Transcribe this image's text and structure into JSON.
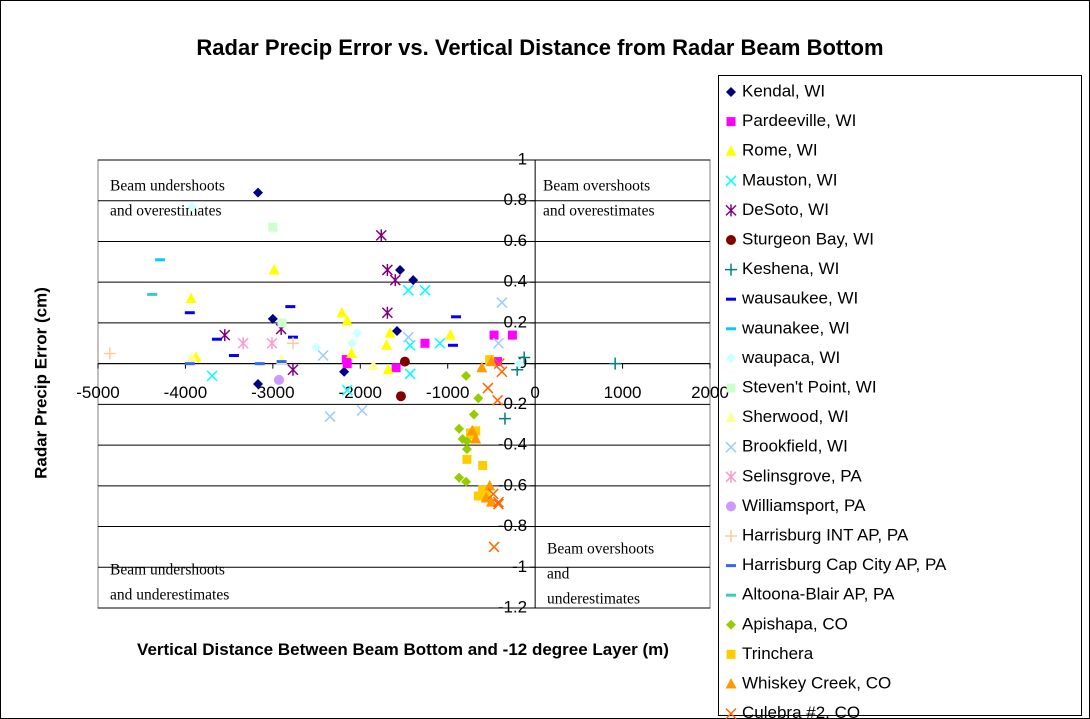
{
  "chart_data": {
    "type": "scatter",
    "title": "Radar Precip Error vs. Vertical Distance from Radar Beam Bottom",
    "x_label": "Vertical Distance Between Beam Bottom and -12 degree Layer (m)",
    "y_label": "Radar Precip Error (cm)",
    "xlim": [
      -5000,
      2000
    ],
    "xticks": [
      -5000,
      -4000,
      -3000,
      -2000,
      -1000,
      0,
      1000,
      2000
    ],
    "ylim": [
      -1.2,
      1
    ],
    "yticks": [
      1,
      0.8,
      0.6,
      0.4,
      0.2,
      0,
      -0.2,
      -0.4,
      -0.6,
      -0.8,
      -1,
      -1.2
    ],
    "grid": true,
    "legend": "right",
    "annotations": [
      {
        "lines": [
          "Beam undershoots",
          "and overestimates"
        ]
      },
      {
        "lines": [
          "Beam overshoots",
          "and overestimates"
        ]
      },
      {
        "lines": [
          "Beam undershoots",
          "and underestimates"
        ]
      },
      {
        "lines": [
          "Beam overshoots",
          "and",
          "underestimates"
        ]
      }
    ],
    "series": [
      {
        "name": "Kendal, WI",
        "color": "#000080",
        "marker": "diamond",
        "x": [
          -3170,
          -3000,
          -3170,
          -1545,
          -1395,
          -1580,
          -2185
        ],
        "values": [
          0.84,
          0.22,
          -0.1,
          0.46,
          0.41,
          0.16,
          -0.04
        ]
      },
      {
        "name": "Pardeeville, WI",
        "color": "#ff00ff",
        "marker": "square",
        "x": [
          -1260,
          -2160,
          -2150,
          -1590,
          -470,
          -260,
          -430
        ],
        "values": [
          0.1,
          0.02,
          0,
          -0.02,
          0.14,
          0.14,
          0.01
        ]
      },
      {
        "name": "Rome, WI",
        "color": "#ffff00",
        "marker": "triangle",
        "x": [
          -3935,
          -2985,
          -2210,
          -2150,
          -2100,
          -1660,
          -1700,
          -1680,
          -970,
          -3880
        ],
        "values": [
          0.32,
          0.46,
          0.25,
          0.21,
          0.05,
          0.15,
          0.09,
          -0.03,
          0.14,
          0.03
        ]
      },
      {
        "name": "Mauston, WI",
        "color": "#00ffff",
        "marker": "x",
        "x": [
          -3695,
          -2150,
          -1430,
          -1430,
          -1260,
          -1450,
          -1090
        ],
        "values": [
          -0.06,
          -0.13,
          0.09,
          -0.05,
          0.36,
          0.36,
          0.1
        ]
      },
      {
        "name": "DeSoto, WI",
        "color": "#800080",
        "marker": "star",
        "x": [
          -3550,
          -2905,
          -2770,
          -1760,
          -1690,
          -1600,
          -1690
        ],
        "values": [
          0.14,
          0.17,
          -0.03,
          0.63,
          0.46,
          0.41,
          0.25
        ]
      },
      {
        "name": "Sturgeon Bay, WI",
        "color": "#800000",
        "marker": "circle",
        "x": [
          -1490,
          -1535
        ],
        "values": [
          0.01,
          -0.16
        ]
      },
      {
        "name": "Keshena, WI",
        "color": "#008080",
        "marker": "plus",
        "x": [
          -125,
          -205,
          -345,
          915
        ],
        "values": [
          0.03,
          -0.03,
          -0.27,
          0
        ]
      },
      {
        "name": "wausaukee, WI",
        "color": "#0000ff",
        "marker": "dash",
        "x": [
          -3950,
          -3640,
          -3445,
          -2800,
          -2770,
          -905,
          -940
        ],
        "values": [
          0.25,
          0.12,
          0.04,
          0.28,
          0.13,
          0.23,
          0.09
        ]
      },
      {
        "name": "waunakee, WI",
        "color": "#00ccff",
        "marker": "dash",
        "x": [
          -4290
        ],
        "values": [
          0.51
        ]
      },
      {
        "name": "waupaca, WI",
        "color": "#ccffff",
        "marker": "diamond",
        "x": [
          -3925,
          -2035,
          -2095,
          -2505,
          -183
        ],
        "values": [
          0.77,
          0.15,
          0.1,
          0.08,
          0
        ]
      },
      {
        "name": "Steven't Point, WI",
        "color": "#ccffcc",
        "marker": "square",
        "x": [
          -3000,
          -2895
        ],
        "values": [
          0.67,
          0.2
        ]
      },
      {
        "name": "Sherwood, WI",
        "color": "#ffff99",
        "marker": "triangle",
        "x": [
          -3925,
          -2900,
          -1850
        ],
        "values": [
          0.03,
          0.02,
          -0.01
        ]
      },
      {
        "name": "Brookfield, WI",
        "color": "#99ccff",
        "marker": "x",
        "x": [
          -2345,
          -2425,
          -1980,
          -1450,
          -380,
          -420
        ],
        "values": [
          -0.26,
          0.04,
          -0.23,
          0.13,
          0.3,
          0.1
        ]
      },
      {
        "name": "Selinsgrove, PA",
        "color": "#ff99cc",
        "marker": "star",
        "x": [
          -3010,
          -3340
        ],
        "values": [
          0.1,
          0.1
        ]
      },
      {
        "name": "Williamsport, PA",
        "color": "#cc99ff",
        "marker": "circle",
        "x": [
          -2930
        ],
        "values": [
          -0.08
        ]
      },
      {
        "name": "Harrisburg INT AP, PA",
        "color": "#ffcc99",
        "marker": "plus",
        "x": [
          -4865,
          -2770
        ],
        "values": [
          0.05,
          0.1
        ]
      },
      {
        "name": "Harrisburg Cap City AP, PA",
        "color": "#3366ff",
        "marker": "dash",
        "x": [
          -3950,
          -3150,
          -2900
        ],
        "values": [
          0,
          0,
          0.01
        ]
      },
      {
        "name": "Altoona-Blair AP, PA",
        "color": "#33cccc",
        "marker": "dash",
        "x": [
          -4380
        ],
        "values": [
          0.34
        ]
      },
      {
        "name": "Apishapa, CO",
        "color": "#99cc00",
        "marker": "diamond",
        "x": [
          -790,
          -870,
          -830,
          -780,
          -870,
          -790,
          -700,
          -650,
          -780
        ],
        "values": [
          -0.06,
          -0.32,
          -0.37,
          -0.42,
          -0.56,
          -0.58,
          -0.25,
          -0.17,
          -0.38
        ]
      },
      {
        "name": "Trinchera",
        "color": "#ffcc00",
        "marker": "square",
        "x": [
          -780,
          -700,
          -600,
          -650,
          -560,
          -600,
          -520,
          -680,
          -740
        ],
        "values": [
          -0.47,
          -0.35,
          -0.5,
          -0.65,
          -0.64,
          -0.62,
          0.02,
          -0.33,
          -0.34
        ]
      },
      {
        "name": "Whiskey Creek, CO",
        "color": "#ff9900",
        "marker": "triangle",
        "x": [
          -680,
          -720,
          -560,
          -500,
          -610,
          -500,
          -520
        ],
        "values": [
          -0.37,
          -0.33,
          -0.66,
          -0.68,
          -0.02,
          0.01,
          -0.6
        ]
      },
      {
        "name": "Culebra #2, CO",
        "color": "#ff6600",
        "marker": "x",
        "x": [
          -470,
          -420,
          -480,
          -540,
          -430,
          -380,
          -410,
          -420
        ],
        "values": [
          -0.9,
          -0.69,
          -0.64,
          -0.12,
          -0.18,
          -0.04,
          0,
          -0.68
        ]
      }
    ]
  }
}
